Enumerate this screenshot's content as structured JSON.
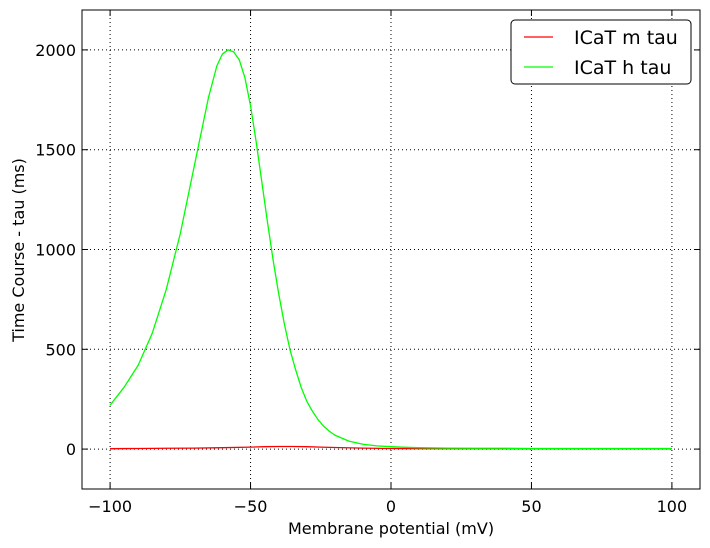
{
  "chart_data": {
    "type": "line",
    "title": "",
    "xlabel": "Membrane potential (mV)",
    "ylabel": "Time Course - tau (ms)",
    "xlim": [
      -110,
      110
    ],
    "ylim": [
      -200,
      2200
    ],
    "xticks": [
      -100,
      -50,
      0,
      50,
      100
    ],
    "xtick_labels": [
      "−100",
      "−50",
      "0",
      "50",
      "100"
    ],
    "yticks": [
      0,
      500,
      1000,
      1500,
      2000
    ],
    "ytick_labels": [
      "0",
      "500",
      "1000",
      "1500",
      "2000"
    ],
    "grid": true,
    "legend_position": "top-right",
    "series": [
      {
        "name": "ICaT m tau",
        "color": "#ff0000",
        "x": [
          -100,
          -90,
          -80,
          -70,
          -60,
          -50,
          -45,
          -40,
          -35,
          -30,
          -25,
          -20,
          -10,
          0,
          10,
          20,
          30,
          40,
          50,
          60,
          70,
          80,
          90,
          100
        ],
        "y": [
          2,
          3,
          4,
          5,
          7,
          10,
          12,
          13,
          13,
          12,
          10,
          8,
          5,
          3,
          2,
          2,
          2,
          2,
          2,
          2,
          2,
          2,
          2,
          2
        ]
      },
      {
        "name": "ICaT h tau",
        "color": "#00ff00",
        "x": [
          -100,
          -95,
          -90,
          -85,
          -80,
          -75,
          -70,
          -65,
          -62,
          -60,
          -58,
          -56,
          -54,
          -52,
          -50,
          -48,
          -46,
          -44,
          -42,
          -40,
          -38,
          -36,
          -34,
          -32,
          -30,
          -28,
          -26,
          -24,
          -22,
          -20,
          -15,
          -10,
          -5,
          0,
          5,
          10,
          20,
          30,
          40,
          50,
          60,
          70,
          80,
          90,
          100
        ],
        "y": [
          220,
          310,
          420,
          580,
          800,
          1080,
          1420,
          1760,
          1920,
          1980,
          2000,
          1990,
          1950,
          1860,
          1720,
          1540,
          1340,
          1140,
          950,
          780,
          630,
          500,
          400,
          310,
          240,
          190,
          148,
          115,
          90,
          70,
          40,
          24,
          16,
          12,
          9,
          7,
          5,
          4,
          4,
          3,
          3,
          3,
          3,
          3,
          3
        ]
      }
    ]
  }
}
